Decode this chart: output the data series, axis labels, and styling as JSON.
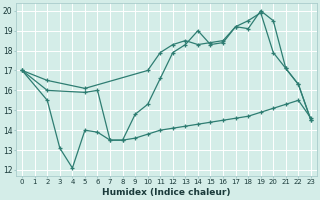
{
  "xlabel": "Humidex (Indice chaleur)",
  "bg_color": "#d4ede8",
  "grid_color": "#ffffff",
  "line_color": "#2e7d72",
  "xlim": [
    -0.5,
    23.5
  ],
  "ylim": [
    11.7,
    20.4
  ],
  "xticks": [
    0,
    1,
    2,
    3,
    4,
    5,
    6,
    7,
    8,
    9,
    10,
    11,
    12,
    13,
    14,
    15,
    16,
    17,
    18,
    19,
    20,
    21,
    22,
    23
  ],
  "yticks": [
    12,
    13,
    14,
    15,
    16,
    17,
    18,
    19,
    20
  ],
  "line1_x": [
    0,
    2,
    3,
    4,
    5,
    6,
    7,
    8,
    9,
    10,
    11,
    12,
    13,
    14,
    15,
    16,
    17,
    18,
    19,
    20,
    21,
    22,
    23
  ],
  "line1_y": [
    17.0,
    15.5,
    13.1,
    12.1,
    14.0,
    13.9,
    13.5,
    13.5,
    14.8,
    15.3,
    16.6,
    17.9,
    18.3,
    19.0,
    18.3,
    18.4,
    19.2,
    19.1,
    20.0,
    19.5,
    17.1,
    16.3,
    14.5
  ],
  "line2_x": [
    0,
    2,
    5,
    10,
    11,
    12,
    13,
    14,
    15,
    16,
    17,
    18,
    19,
    20,
    21,
    22,
    23
  ],
  "line2_y": [
    17.0,
    16.5,
    16.1,
    17.0,
    17.9,
    18.3,
    18.5,
    18.3,
    18.4,
    18.5,
    19.2,
    19.5,
    19.9,
    17.9,
    17.1,
    16.3,
    14.5
  ],
  "line3_x": [
    0,
    2,
    5,
    6,
    7,
    8,
    9,
    10,
    11,
    12,
    13,
    14,
    15,
    16,
    17,
    18,
    19,
    20,
    21,
    22,
    23
  ],
  "line3_y": [
    17.0,
    16.0,
    15.9,
    16.0,
    13.5,
    13.5,
    13.6,
    13.8,
    14.0,
    14.1,
    14.2,
    14.3,
    14.4,
    14.5,
    14.6,
    14.7,
    14.9,
    15.1,
    15.3,
    15.5,
    14.6
  ]
}
